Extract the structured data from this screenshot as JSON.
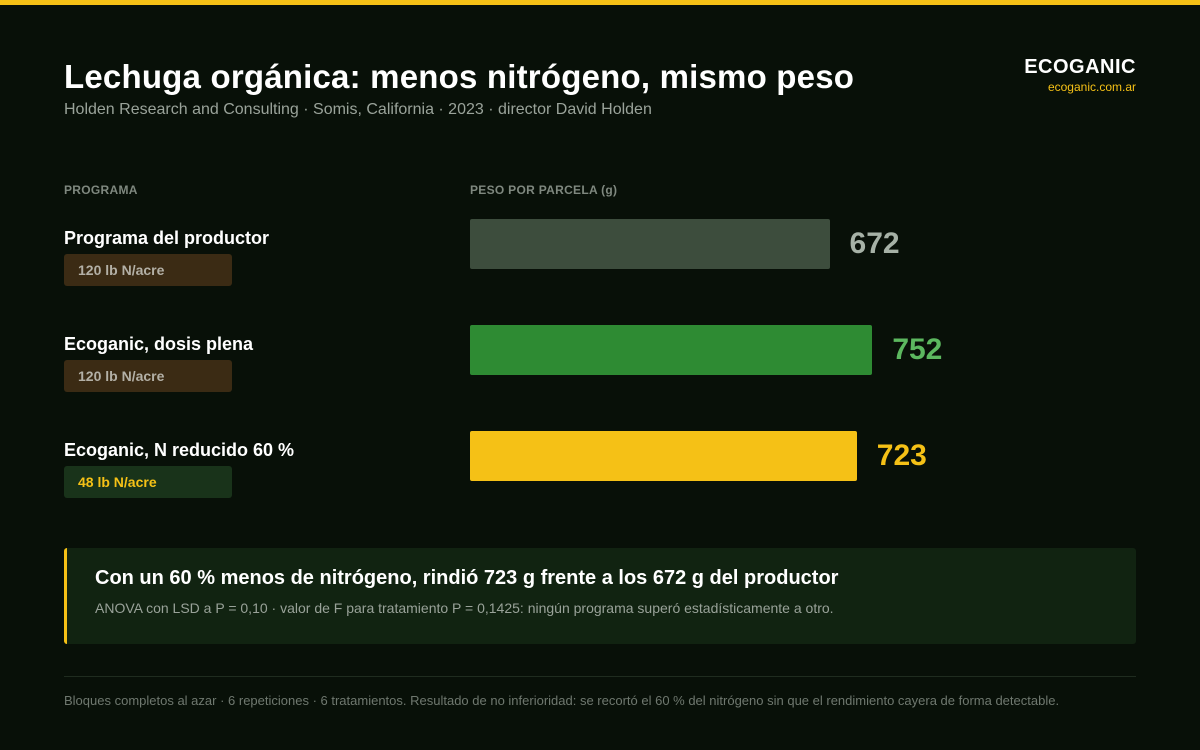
{
  "header": {
    "title": "Lechuga orgánica: menos nitrógeno, mismo peso",
    "subtitle": "Holden Research and Consulting · Somis, California · 2023 · director David Holden"
  },
  "brand": {
    "name": "ECOGANIC",
    "url": "ecoganic.com.ar"
  },
  "colors": {
    "accent": "#f5c116",
    "background": "#081008",
    "panel": "#112311"
  },
  "chart_data": {
    "type": "bar",
    "orientation": "horizontal",
    "category_header": "PROGRAMA",
    "value_header": "PESO POR PARCELA (g)",
    "categories": [
      "Programa del productor",
      "Ecoganic, dosis plena",
      "Ecoganic, N reducido 60 %"
    ],
    "values": [
      672,
      752,
      723
    ],
    "tags": [
      "120 lb N/acre",
      "120 lb N/acre",
      "48 lb N/acre"
    ],
    "bar_colors": [
      "#3d4d3d",
      "#2e8b33",
      "#f5c116"
    ],
    "value_colors": [
      "#a6b1a6",
      "#5cb85f",
      "#f5c116"
    ],
    "tag_styles": [
      {
        "bg": "#3b2b14",
        "fg": "#b3b0a6"
      },
      {
        "bg": "#3b2b14",
        "fg": "#b3b0a6"
      },
      {
        "bg": "#19331a",
        "fg": "#f5c116"
      }
    ],
    "xlim": [
      0,
      838
    ],
    "grid": false,
    "legend": "none"
  },
  "note": {
    "title": "Con un 60 % menos de nitrógeno, rindió 723 g frente a los 672 g del productor",
    "text": "ANOVA con LSD a P = 0,10 · valor de F para tratamiento P = 0,1425: ningún programa superó estadísticamente a otro."
  },
  "footer": "Bloques completos al azar · 6 repeticiones · 6 tratamientos. Resultado de no inferioridad: se recortó el 60 % del nitrógeno sin que el rendimiento cayera de forma detectable."
}
